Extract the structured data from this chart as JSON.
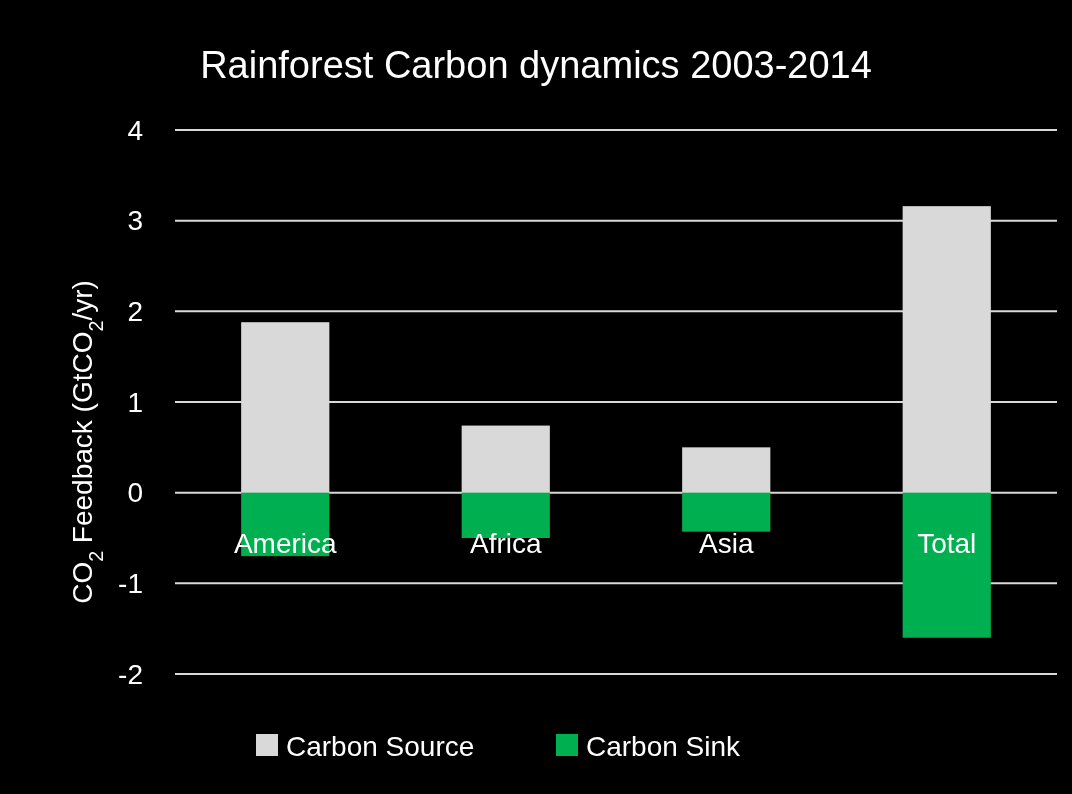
{
  "chart_data": {
    "type": "bar",
    "title": "Rainforest Carbon dynamics 2003-2014",
    "ylabel": "CO$_{2}$ Feedback (GtCO$_{2}$/yr)",
    "categories": [
      "America",
      "Africa",
      "Asia",
      "Total"
    ],
    "series": [
      {
        "name": "Carbon Source",
        "color": "#d9d9d9",
        "values": [
          1.88,
          0.74,
          0.5,
          3.16
        ]
      },
      {
        "name": "Carbon Sink",
        "color": "#00b050",
        "values": [
          -0.7,
          -0.5,
          -0.43,
          -1.6
        ]
      }
    ],
    "stacked": true,
    "ylim": [
      -2,
      4
    ],
    "yticks": [
      -2,
      -1,
      0,
      1,
      2,
      3,
      4
    ],
    "grid": "y",
    "legend": "bottom"
  }
}
